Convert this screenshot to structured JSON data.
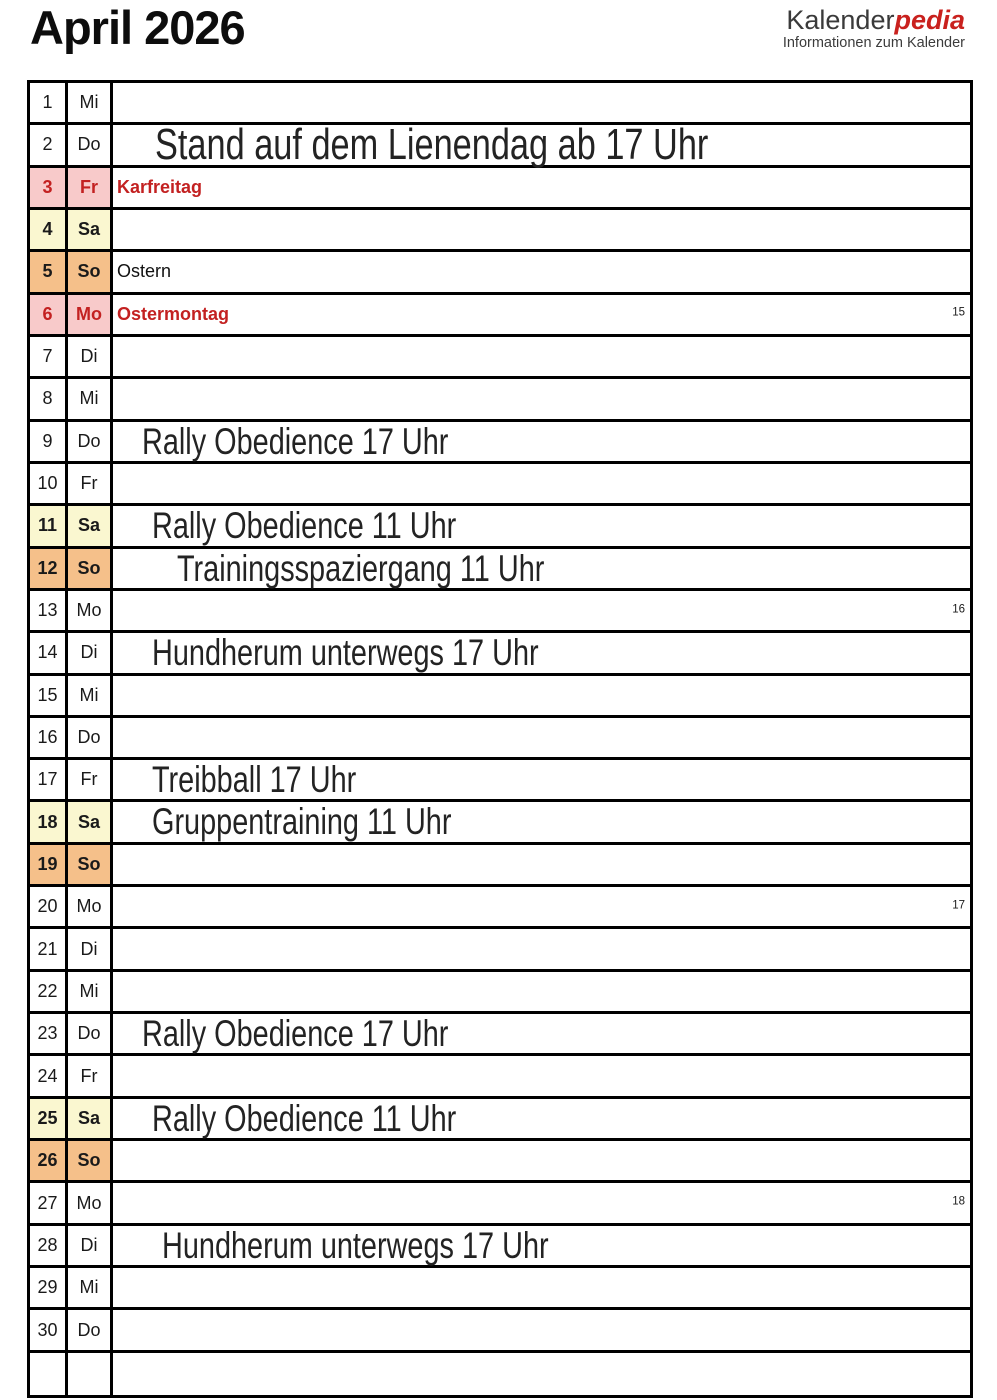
{
  "header": {
    "title": "April 2026",
    "logo": {
      "brand_part1": "Kalender",
      "brand_part2": "pedia",
      "subtitle": "Informationen zum Kalender",
      "accent_color": "#c9211e"
    }
  },
  "colors": {
    "holiday_bg": "#f8caca",
    "holiday_text": "#c32121",
    "saturday_bg": "#faf7d0",
    "sunday_bg": "#f5c08a",
    "grid_line": "#000000"
  },
  "calendar": {
    "month": "April",
    "year": "2026",
    "rows": [
      {
        "day": "1",
        "weekday": "Mi",
        "type": "normal",
        "event": "",
        "event_style": "plain"
      },
      {
        "day": "2",
        "weekday": "Do",
        "type": "normal",
        "event": "Stand auf dem Lienendag ab 17 Uhr",
        "event_style": "hand-lg",
        "indent": 38
      },
      {
        "day": "3",
        "weekday": "Fr",
        "type": "holiday",
        "event": "Karfreitag",
        "event_style": "holiday"
      },
      {
        "day": "4",
        "weekday": "Sa",
        "type": "saturday",
        "event": "",
        "event_style": "plain"
      },
      {
        "day": "5",
        "weekday": "So",
        "type": "sunday",
        "event": "Ostern",
        "event_style": "plain"
      },
      {
        "day": "6",
        "weekday": "Mo",
        "type": "holiday",
        "event": "Ostermontag",
        "event_style": "holiday",
        "week": "15"
      },
      {
        "day": "7",
        "weekday": "Di",
        "type": "normal",
        "event": "",
        "event_style": "plain"
      },
      {
        "day": "8",
        "weekday": "Mi",
        "type": "normal",
        "event": "",
        "event_style": "plain"
      },
      {
        "day": "9",
        "weekday": "Do",
        "type": "normal",
        "event": "Rally Obedience 17 Uhr",
        "event_style": "hand",
        "indent": 25
      },
      {
        "day": "10",
        "weekday": "Fr",
        "type": "normal",
        "event": "",
        "event_style": "plain"
      },
      {
        "day": "11",
        "weekday": "Sa",
        "type": "saturday",
        "event": "Rally Obedience 11 Uhr",
        "event_style": "hand",
        "indent": 35
      },
      {
        "day": "12",
        "weekday": "So",
        "type": "sunday",
        "event": "Trainingsspaziergang 11 Uhr",
        "event_style": "hand",
        "indent": 60
      },
      {
        "day": "13",
        "weekday": "Mo",
        "type": "normal",
        "event": "",
        "event_style": "plain",
        "week": "16"
      },
      {
        "day": "14",
        "weekday": "Di",
        "type": "normal",
        "event": "Hundherum unterwegs 17 Uhr",
        "event_style": "hand",
        "indent": 35
      },
      {
        "day": "15",
        "weekday": "Mi",
        "type": "normal",
        "event": "",
        "event_style": "plain"
      },
      {
        "day": "16",
        "weekday": "Do",
        "type": "normal",
        "event": "",
        "event_style": "plain"
      },
      {
        "day": "17",
        "weekday": "Fr",
        "type": "normal",
        "event": "Treibball 17 Uhr",
        "event_style": "hand",
        "indent": 35
      },
      {
        "day": "18",
        "weekday": "Sa",
        "type": "saturday",
        "event": "Gruppentraining 11 Uhr",
        "event_style": "hand",
        "indent": 35
      },
      {
        "day": "19",
        "weekday": "So",
        "type": "sunday",
        "event": "",
        "event_style": "plain"
      },
      {
        "day": "20",
        "weekday": "Mo",
        "type": "normal",
        "event": "",
        "event_style": "plain",
        "week": "17"
      },
      {
        "day": "21",
        "weekday": "Di",
        "type": "normal",
        "event": "",
        "event_style": "plain"
      },
      {
        "day": "22",
        "weekday": "Mi",
        "type": "normal",
        "event": "",
        "event_style": "plain"
      },
      {
        "day": "23",
        "weekday": "Do",
        "type": "normal",
        "event": "Rally Obedience 17 Uhr",
        "event_style": "hand",
        "indent": 25
      },
      {
        "day": "24",
        "weekday": "Fr",
        "type": "normal",
        "event": "",
        "event_style": "plain"
      },
      {
        "day": "25",
        "weekday": "Sa",
        "type": "saturday",
        "event": "Rally Obedience 11 Uhr",
        "event_style": "hand",
        "indent": 35
      },
      {
        "day": "26",
        "weekday": "So",
        "type": "sunday",
        "event": "",
        "event_style": "plain"
      },
      {
        "day": "27",
        "weekday": "Mo",
        "type": "normal",
        "event": "",
        "event_style": "plain",
        "week": "18"
      },
      {
        "day": "28",
        "weekday": "Di",
        "type": "normal",
        "event": "Hundherum unterwegs 17 Uhr",
        "event_style": "hand",
        "indent": 45
      },
      {
        "day": "29",
        "weekday": "Mi",
        "type": "normal",
        "event": "",
        "event_style": "plain"
      },
      {
        "day": "30",
        "weekday": "Do",
        "type": "normal",
        "event": "",
        "event_style": "plain"
      },
      {
        "day": "",
        "weekday": "",
        "type": "empty",
        "event": "",
        "event_style": "plain"
      }
    ]
  }
}
